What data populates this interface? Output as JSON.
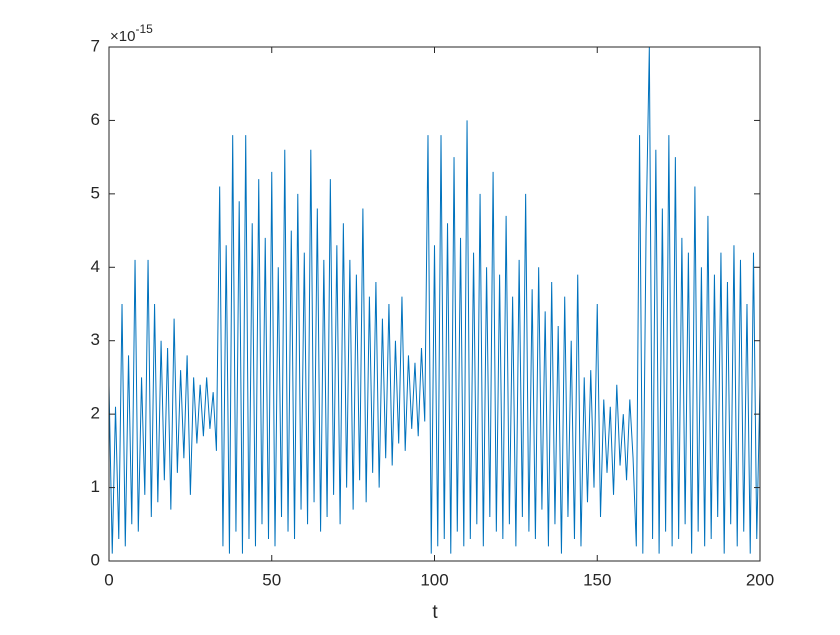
{
  "chart_data": {
    "type": "line",
    "xlabel": "t",
    "y_multiplier": {
      "base": "×10",
      "exponent": "-15"
    },
    "color": "#0072bd",
    "xlim": [
      0,
      200
    ],
    "xticks": [
      0,
      50,
      100,
      150,
      200
    ],
    "ylim": [
      0,
      7
    ],
    "yticks": [
      0,
      1,
      2,
      3,
      4,
      5,
      6,
      7
    ],
    "x": [
      0,
      1,
      2,
      3,
      4,
      5,
      6,
      7,
      8,
      9,
      10,
      11,
      12,
      13,
      14,
      15,
      16,
      17,
      18,
      19,
      20,
      21,
      22,
      23,
      24,
      25,
      26,
      27,
      28,
      29,
      30,
      31,
      32,
      33,
      34,
      35,
      36,
      37,
      38,
      39,
      40,
      41,
      42,
      43,
      44,
      45,
      46,
      47,
      48,
      49,
      50,
      51,
      52,
      53,
      54,
      55,
      56,
      57,
      58,
      59,
      60,
      61,
      62,
      63,
      64,
      65,
      66,
      67,
      68,
      69,
      70,
      71,
      72,
      73,
      74,
      75,
      76,
      77,
      78,
      79,
      80,
      81,
      82,
      83,
      84,
      85,
      86,
      87,
      88,
      89,
      90,
      91,
      92,
      93,
      94,
      95,
      96,
      97,
      98,
      99,
      100,
      101,
      102,
      103,
      104,
      105,
      106,
      107,
      108,
      109,
      110,
      111,
      112,
      113,
      114,
      115,
      116,
      117,
      118,
      119,
      120,
      121,
      122,
      123,
      124,
      125,
      126,
      127,
      128,
      129,
      130,
      131,
      132,
      133,
      134,
      135,
      136,
      137,
      138,
      139,
      140,
      141,
      142,
      143,
      144,
      145,
      146,
      147,
      148,
      149,
      150,
      151,
      152,
      153,
      154,
      155,
      156,
      157,
      158,
      159,
      160,
      161,
      162,
      163,
      164,
      165,
      166,
      167,
      168,
      169,
      170,
      171,
      172,
      173,
      174,
      175,
      176,
      177,
      178,
      179,
      180,
      181,
      182,
      183,
      184,
      185,
      186,
      187,
      188,
      189,
      190,
      191,
      192,
      193,
      194,
      195,
      196,
      197,
      198,
      199,
      200
    ],
    "values": [
      2.4,
      0.1,
      2.1,
      0.3,
      3.5,
      0.2,
      2.8,
      0.5,
      4.1,
      0.4,
      2.5,
      0.9,
      4.1,
      0.6,
      3.5,
      0.8,
      3.0,
      1.1,
      2.9,
      0.7,
      3.3,
      1.2,
      2.6,
      1.4,
      2.8,
      0.9,
      2.5,
      1.6,
      2.4,
      1.7,
      2.5,
      1.8,
      2.3,
      1.5,
      5.1,
      0.2,
      4.3,
      0.1,
      5.8,
      0.4,
      4.9,
      0.1,
      5.8,
      0.3,
      4.6,
      0.2,
      5.2,
      0.5,
      4.4,
      0.3,
      5.3,
      0.2,
      4.0,
      0.6,
      5.6,
      0.4,
      4.5,
      0.3,
      5.0,
      0.7,
      4.2,
      0.5,
      5.6,
      0.8,
      4.8,
      0.4,
      4.1,
      0.6,
      5.2,
      0.9,
      4.3,
      0.5,
      4.6,
      1.0,
      4.1,
      0.7,
      3.9,
      1.1,
      4.8,
      0.8,
      3.6,
      1.2,
      3.8,
      1.0,
      3.3,
      1.4,
      3.5,
      1.3,
      3.0,
      1.6,
      3.6,
      1.5,
      2.8,
      1.8,
      2.7,
      1.7,
      2.9,
      1.9,
      5.8,
      0.1,
      4.3,
      0.2,
      5.8,
      0.3,
      4.6,
      0.1,
      5.5,
      0.4,
      4.4,
      0.2,
      6.0,
      0.3,
      4.2,
      0.5,
      5.0,
      0.2,
      4.0,
      0.6,
      5.3,
      0.4,
      3.9,
      0.3,
      4.7,
      0.5,
      3.6,
      0.2,
      4.1,
      0.6,
      5.0,
      0.4,
      3.7,
      0.3,
      4.0,
      0.7,
      3.4,
      0.2,
      3.8,
      0.5,
      3.2,
      0.1,
      3.6,
      0.6,
      3.0,
      0.3,
      3.9,
      0.2,
      2.5,
      0.8,
      2.6,
      1.0,
      3.5,
      0.6,
      2.2,
      1.2,
      2.1,
      0.9,
      2.4,
      1.3,
      2.0,
      1.1,
      2.2,
      1.4,
      0.2,
      5.8,
      0.1,
      4.5,
      7.0,
      0.3,
      5.6,
      0.1,
      4.8,
      0.4,
      5.8,
      0.2,
      5.5,
      0.3,
      4.4,
      0.5,
      4.2,
      0.1,
      5.1,
      0.4,
      4.0,
      0.2,
      4.7,
      0.3,
      3.9,
      0.6,
      4.2,
      0.1,
      3.8,
      0.5,
      4.3,
      0.2,
      4.1,
      0.4,
      3.5,
      0.1,
      4.2,
      0.3,
      2.4
    ]
  }
}
